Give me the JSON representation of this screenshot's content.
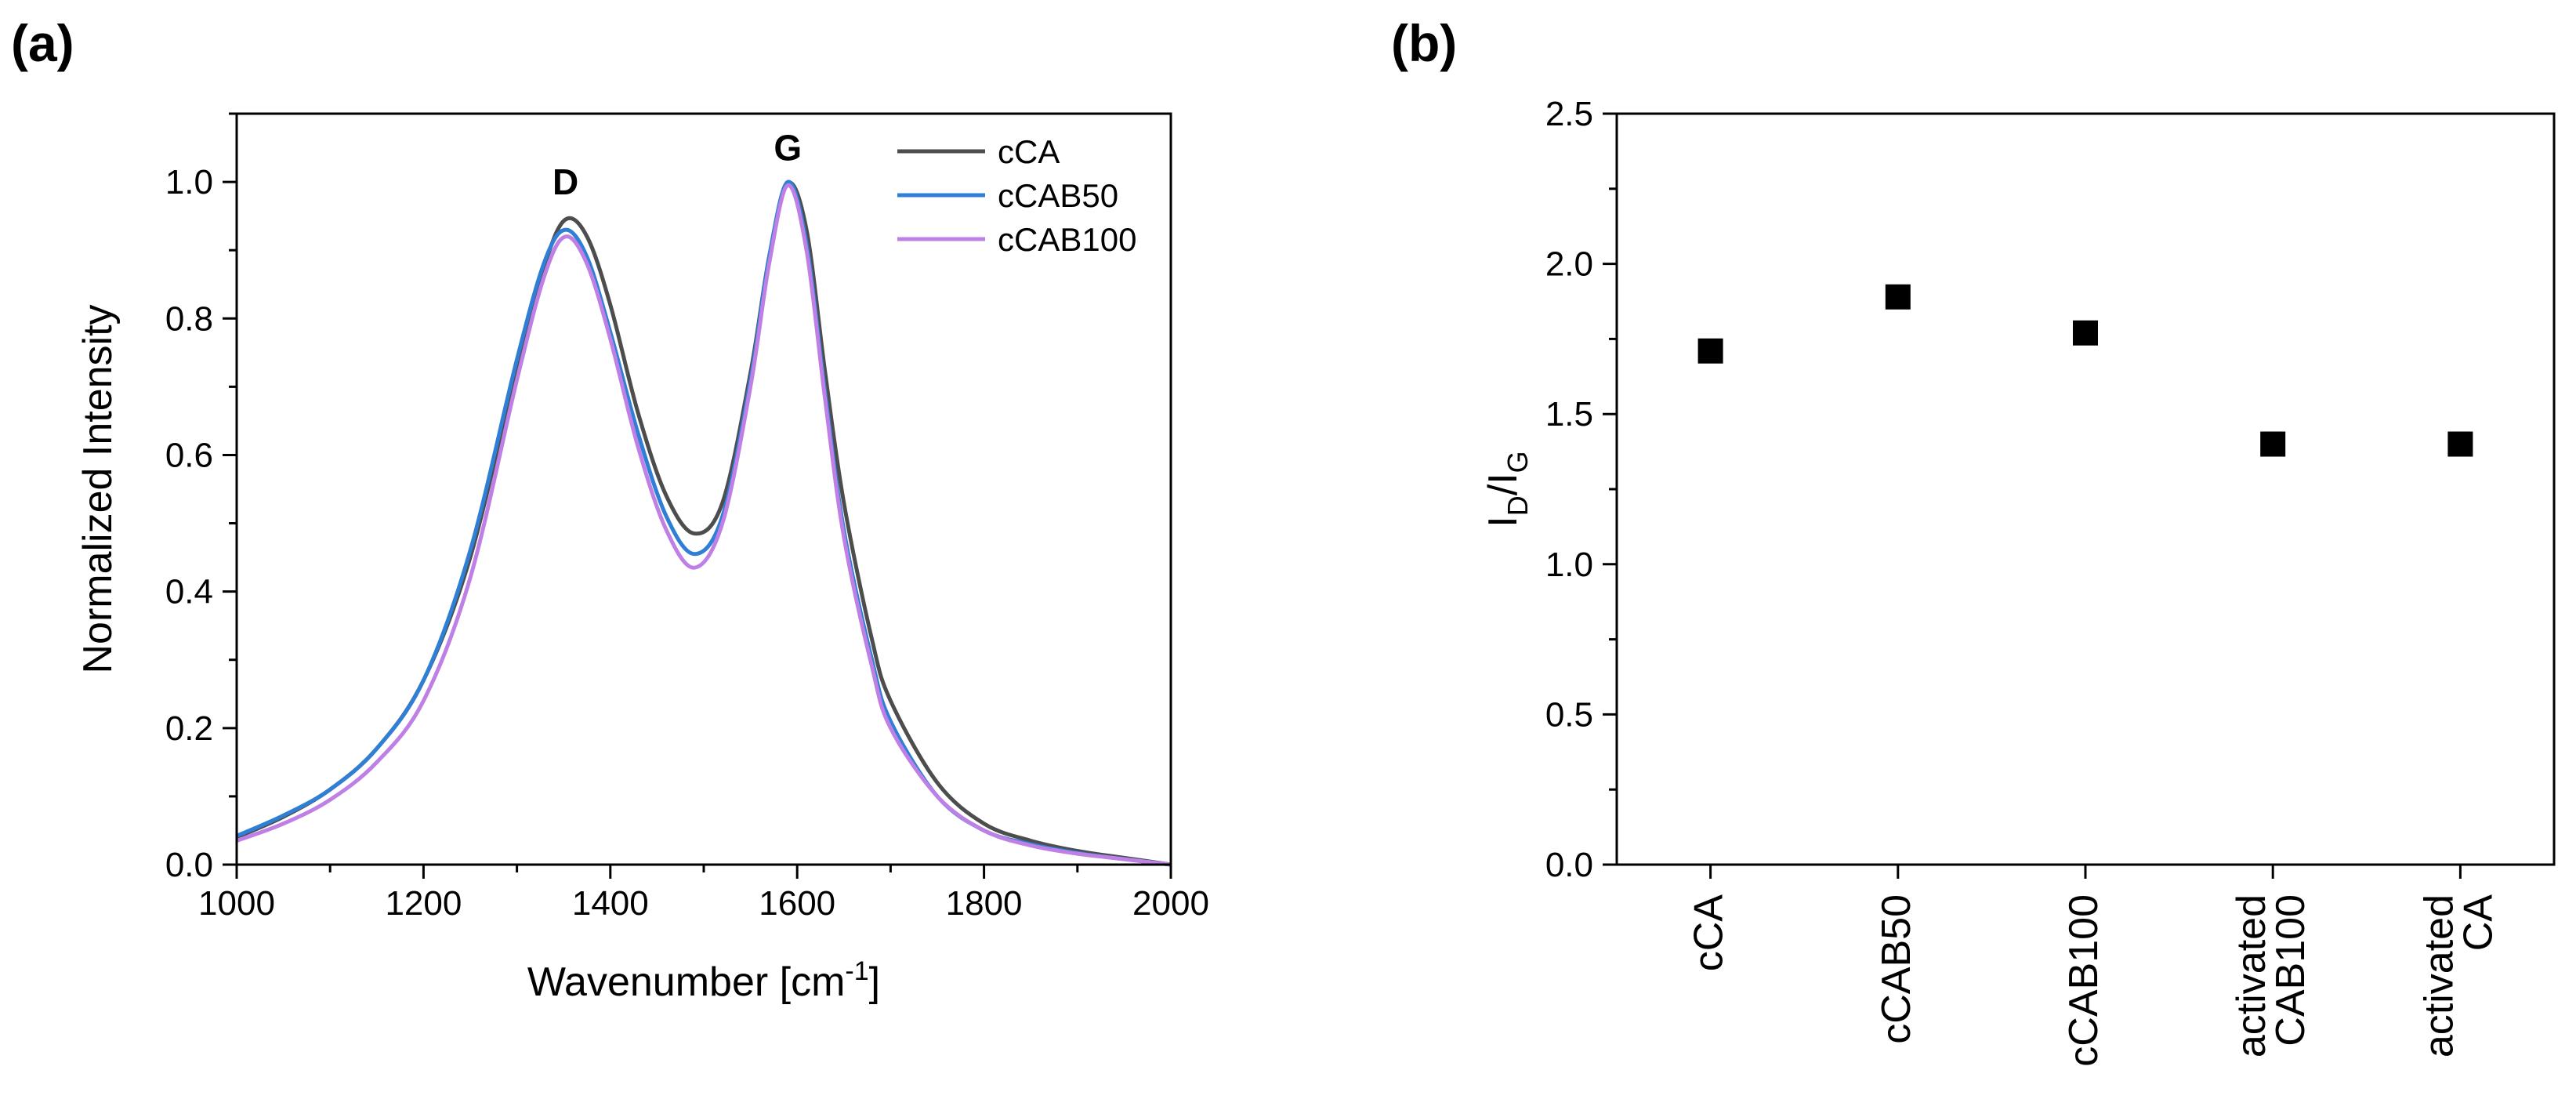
{
  "panels": {
    "a": {
      "label": "(a)"
    },
    "b": {
      "label": "(b)"
    }
  },
  "chart_data": [
    {
      "id": "a",
      "type": "line",
      "title": "",
      "xlabel": "Wavenumber [cm",
      "xlabel_sup": "-1",
      "xlabel_end": "]",
      "ylabel": "Normalized Intensity",
      "xlim": [
        1000,
        2000
      ],
      "ylim": [
        0,
        1.1
      ],
      "xticks": [
        1000,
        1200,
        1400,
        1600,
        1800,
        2000
      ],
      "yticks": [
        0.0,
        0.2,
        0.4,
        0.6,
        0.8,
        1.0
      ],
      "ytick_labels": [
        "0.0",
        "0.2",
        "0.4",
        "0.6",
        "0.8",
        "1.0"
      ],
      "x_minor_step": 100,
      "y_minor_step": 0.1,
      "legend_position": "top-right",
      "annotations": [
        {
          "text": "D",
          "x": 1352,
          "y": 1.0
        },
        {
          "text": "G",
          "x": 1590,
          "y": 1.05
        }
      ],
      "x": [
        1000,
        1050,
        1100,
        1150,
        1200,
        1250,
        1300,
        1330,
        1352,
        1375,
        1400,
        1430,
        1460,
        1490,
        1520,
        1550,
        1570,
        1590,
        1610,
        1630,
        1650,
        1680,
        1700,
        1750,
        1800,
        1850,
        1900,
        1950,
        2000
      ],
      "series": [
        {
          "name": "cCA",
          "color": "#4d4d4d",
          "values": [
            0.04,
            0.07,
            0.11,
            0.17,
            0.27,
            0.45,
            0.73,
            0.88,
            0.945,
            0.92,
            0.82,
            0.66,
            0.54,
            0.485,
            0.53,
            0.72,
            0.89,
            0.998,
            0.93,
            0.72,
            0.53,
            0.33,
            0.24,
            0.12,
            0.06,
            0.035,
            0.02,
            0.01,
            0.0
          ]
        },
        {
          "name": "cCAB50",
          "color": "#2f7fd6",
          "values": [
            0.042,
            0.072,
            0.11,
            0.17,
            0.27,
            0.46,
            0.74,
            0.885,
            0.93,
            0.89,
            0.78,
            0.63,
            0.51,
            0.455,
            0.51,
            0.71,
            0.89,
            1.0,
            0.91,
            0.69,
            0.49,
            0.3,
            0.21,
            0.1,
            0.05,
            0.03,
            0.017,
            0.008,
            0.0
          ]
        },
        {
          "name": "cCAB100",
          "color": "#bf80e6",
          "values": [
            0.035,
            0.06,
            0.095,
            0.15,
            0.24,
            0.42,
            0.71,
            0.865,
            0.92,
            0.88,
            0.77,
            0.61,
            0.49,
            0.435,
            0.5,
            0.7,
            0.88,
            0.995,
            0.9,
            0.68,
            0.48,
            0.29,
            0.2,
            0.1,
            0.05,
            0.028,
            0.016,
            0.008,
            0.0
          ]
        }
      ]
    },
    {
      "id": "b",
      "type": "scatter",
      "title": "",
      "xlabel": "",
      "ylabel_main": "I",
      "ylabel_sub1": "D",
      "ylabel_mid": "/I",
      "ylabel_sub2": "G",
      "ylim": [
        0,
        2.5
      ],
      "yticks": [
        0.0,
        0.5,
        1.0,
        1.5,
        2.0,
        2.5
      ],
      "ytick_labels": [
        "0.0",
        "0.5",
        "1.0",
        "1.5",
        "2.0",
        "2.5"
      ],
      "y_minor_step": 0.25,
      "categories": [
        [
          "cCA"
        ],
        [
          "cCAB50"
        ],
        [
          "cCAB100"
        ],
        [
          "activated",
          "CAB100"
        ],
        [
          "activated",
          "CA"
        ]
      ],
      "values": [
        1.71,
        1.89,
        1.77,
        1.4,
        1.4
      ],
      "marker_color": "#000000"
    }
  ]
}
